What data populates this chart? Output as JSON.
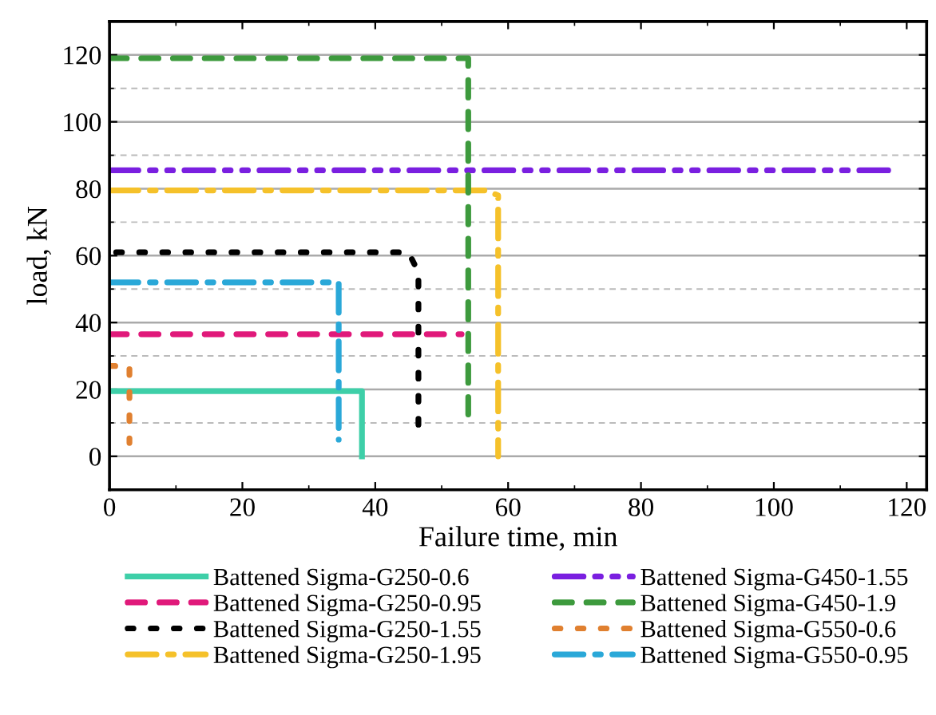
{
  "chart_data": {
    "type": "line",
    "xlabel": "Failure time, min",
    "ylabel": "load, kN",
    "xlim": [
      0,
      123
    ],
    "xticks": [
      0,
      20,
      40,
      60,
      80,
      100,
      120
    ],
    "ylim": [
      -10,
      130
    ],
    "yticks": [
      0,
      20,
      40,
      60,
      80,
      100,
      120
    ],
    "grid": "y",
    "legend": "bottom",
    "marker": "none",
    "series": [
      {
        "name": "Battened Sigma-G250-0.6",
        "color": "#3ecfa8",
        "line_style": "solid",
        "x": [
          0,
          38,
          38
        ],
        "values": [
          19.5,
          19.5,
          0
        ]
      },
      {
        "name": "Battened Sigma-G250-0.95",
        "color": "#e0197a",
        "line_style": "dashed",
        "x": [
          0,
          53
        ],
        "values": [
          36.5,
          36.5
        ]
      },
      {
        "name": "Battened Sigma-G250-1.55",
        "color": "#000000",
        "line_style": "dotted",
        "x": [
          1,
          45,
          46.5,
          46.5
        ],
        "values": [
          61,
          61,
          55,
          7
        ]
      },
      {
        "name": "Battened Sigma-G250-1.95",
        "color": "#f5c12a",
        "line_style": "dashdot",
        "x": [
          0,
          56.5,
          58.5,
          58.5
        ],
        "values": [
          79.5,
          79.5,
          78,
          0
        ]
      },
      {
        "name": "Battened Sigma-G450-1.55",
        "color": "#7a1fe0",
        "line_style": "dashdotdot",
        "x": [
          0,
          118
        ],
        "values": [
          85.5,
          85.5
        ]
      },
      {
        "name": "Battened Sigma-G450-1.9",
        "color": "#3d9a3d",
        "line_style": "dashed",
        "x": [
          0,
          54,
          54
        ],
        "values": [
          119,
          119,
          11
        ]
      },
      {
        "name": "Battened Sigma-G550-0.6",
        "color": "#e08030",
        "line_style": "dotted",
        "x": [
          0,
          3,
          3
        ],
        "values": [
          27,
          27,
          4
        ]
      },
      {
        "name": "Battened Sigma-G550-0.95",
        "color": "#2aa8d8",
        "line_style": "dashdot",
        "x": [
          0,
          34.5,
          34.5
        ],
        "values": [
          52,
          52,
          5
        ]
      }
    ]
  }
}
